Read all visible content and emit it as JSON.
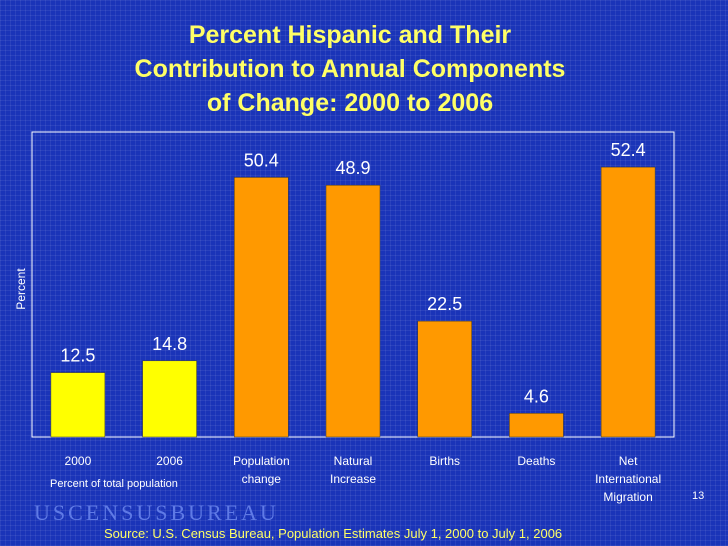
{
  "chart_data": {
    "type": "bar",
    "title": [
      "Percent Hispanic and Their",
      "Contribution to Annual Components",
      "of Change:  2000 to 2006"
    ],
    "ylabel": "Percent",
    "ylim": [
      0,
      55
    ],
    "grid": false,
    "categories": [
      [
        "2000"
      ],
      [
        "2006"
      ],
      [
        "Population",
        "change"
      ],
      [
        "Natural",
        "Increase"
      ],
      [
        "Births"
      ],
      [
        "Deaths"
      ],
      [
        "Net",
        "International",
        "Migration"
      ]
    ],
    "values": [
      12.5,
      14.8,
      50.4,
      48.9,
      22.5,
      4.6,
      52.4
    ],
    "value_labels": [
      "12.5",
      "14.8",
      "50.4",
      "48.9",
      "22.5",
      "4.6",
      "52.4"
    ],
    "bar_colors": [
      "#ffff00",
      "#ffff00",
      "#ff9900",
      "#ff9900",
      "#ff9900",
      "#ff9900",
      "#ff9900"
    ],
    "group_note": "Percent of total population"
  },
  "colors": {
    "background": "#1a34b8",
    "title": "#ffff66",
    "first_group_bars": "#ffff00",
    "component_bars": "#ff9900",
    "axis": "#ffffff"
  },
  "footer": {
    "logo": "USCENSUSBUREAU",
    "source": "Source: U.S. Census Bureau, Population Estimates July 1, 2000 to July 1, 2006",
    "slide_number": "13"
  }
}
